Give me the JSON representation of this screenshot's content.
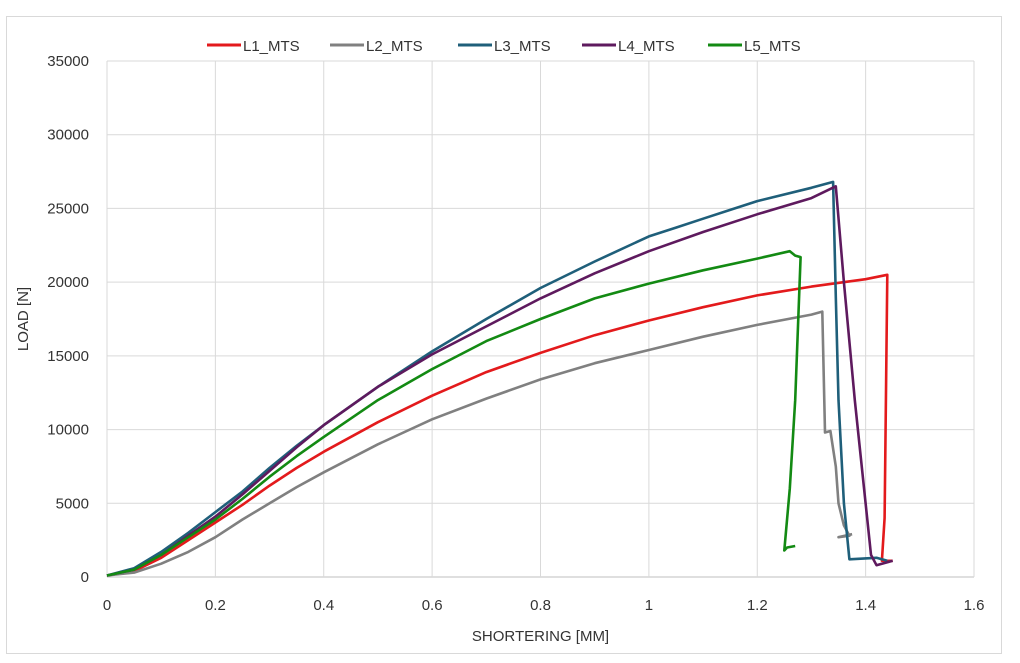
{
  "chart_data": {
    "type": "line",
    "title": "",
    "xlabel": "SHORTERING [MM]",
    "ylabel": "LOAD [N]",
    "xlim": [
      0,
      1.6
    ],
    "ylim": [
      0,
      35000
    ],
    "x_ticks": [
      "0",
      "0.2",
      "0.4",
      "0.6",
      "0.8",
      "1",
      "1.2",
      "1.4",
      "1.6"
    ],
    "y_ticks": [
      "0",
      "5000",
      "10000",
      "15000",
      "20000",
      "25000",
      "30000",
      "35000"
    ],
    "grid": true,
    "legend_position": "top",
    "series": [
      {
        "name": "L1_MTS",
        "color": "#e31a1c",
        "points": [
          [
            0,
            100
          ],
          [
            0.05,
            400
          ],
          [
            0.1,
            1300
          ],
          [
            0.15,
            2500
          ],
          [
            0.2,
            3700
          ],
          [
            0.25,
            4900
          ],
          [
            0.3,
            6200
          ],
          [
            0.35,
            7400
          ],
          [
            0.4,
            8500
          ],
          [
            0.5,
            10500
          ],
          [
            0.6,
            12300
          ],
          [
            0.7,
            13900
          ],
          [
            0.8,
            15200
          ],
          [
            0.9,
            16400
          ],
          [
            1.0,
            17400
          ],
          [
            1.1,
            18300
          ],
          [
            1.2,
            19100
          ],
          [
            1.3,
            19700
          ],
          [
            1.4,
            20200
          ],
          [
            1.44,
            20500
          ],
          [
            1.435,
            4000
          ],
          [
            1.43,
            1100
          ],
          [
            1.45,
            1100
          ]
        ]
      },
      {
        "name": "L2_MTS",
        "color": "#808080",
        "points": [
          [
            0,
            100
          ],
          [
            0.05,
            300
          ],
          [
            0.1,
            900
          ],
          [
            0.15,
            1700
          ],
          [
            0.2,
            2700
          ],
          [
            0.25,
            3900
          ],
          [
            0.3,
            5000
          ],
          [
            0.35,
            6100
          ],
          [
            0.4,
            7100
          ],
          [
            0.5,
            9000
          ],
          [
            0.6,
            10700
          ],
          [
            0.7,
            12100
          ],
          [
            0.8,
            13400
          ],
          [
            0.9,
            14500
          ],
          [
            1.0,
            15400
          ],
          [
            1.1,
            16300
          ],
          [
            1.2,
            17100
          ],
          [
            1.3,
            17800
          ],
          [
            1.32,
            18000
          ],
          [
            1.325,
            9800
          ],
          [
            1.335,
            9900
          ],
          [
            1.345,
            7500
          ],
          [
            1.35,
            5000
          ],
          [
            1.36,
            3500
          ],
          [
            1.37,
            2800
          ],
          [
            1.35,
            2700
          ],
          [
            1.375,
            2900
          ]
        ]
      },
      {
        "name": "L3_MTS",
        "color": "#1f5f7a",
        "points": [
          [
            0,
            100
          ],
          [
            0.05,
            600
          ],
          [
            0.1,
            1700
          ],
          [
            0.15,
            3000
          ],
          [
            0.2,
            4400
          ],
          [
            0.25,
            5800
          ],
          [
            0.3,
            7400
          ],
          [
            0.35,
            8900
          ],
          [
            0.4,
            10300
          ],
          [
            0.5,
            12900
          ],
          [
            0.6,
            15300
          ],
          [
            0.7,
            17500
          ],
          [
            0.8,
            19600
          ],
          [
            0.9,
            21400
          ],
          [
            1.0,
            23100
          ],
          [
            1.05,
            23700
          ],
          [
            1.1,
            24300
          ],
          [
            1.15,
            24900
          ],
          [
            1.2,
            25500
          ],
          [
            1.3,
            26400
          ],
          [
            1.34,
            26800
          ],
          [
            1.345,
            19000
          ],
          [
            1.35,
            12000
          ],
          [
            1.36,
            5000
          ],
          [
            1.37,
            1200
          ],
          [
            1.42,
            1300
          ],
          [
            1.44,
            1100
          ]
        ]
      },
      {
        "name": "L4_MTS",
        "color": "#5e1a5e",
        "points": [
          [
            0,
            100
          ],
          [
            0.05,
            500
          ],
          [
            0.1,
            1500
          ],
          [
            0.15,
            2800
          ],
          [
            0.2,
            4100
          ],
          [
            0.25,
            5600
          ],
          [
            0.3,
            7200
          ],
          [
            0.35,
            8800
          ],
          [
            0.4,
            10300
          ],
          [
            0.5,
            12900
          ],
          [
            0.6,
            15100
          ],
          [
            0.7,
            17000
          ],
          [
            0.8,
            18900
          ],
          [
            0.9,
            20600
          ],
          [
            1.0,
            22100
          ],
          [
            1.1,
            23400
          ],
          [
            1.2,
            24600
          ],
          [
            1.3,
            25700
          ],
          [
            1.345,
            26500
          ],
          [
            1.36,
            20000
          ],
          [
            1.38,
            12000
          ],
          [
            1.4,
            5000
          ],
          [
            1.41,
            1500
          ],
          [
            1.42,
            800
          ],
          [
            1.45,
            1100
          ]
        ]
      },
      {
        "name": "L5_MTS",
        "color": "#138a13",
        "points": [
          [
            0,
            100
          ],
          [
            0.05,
            500
          ],
          [
            0.1,
            1500
          ],
          [
            0.15,
            2700
          ],
          [
            0.2,
            3900
          ],
          [
            0.25,
            5300
          ],
          [
            0.3,
            6800
          ],
          [
            0.35,
            8200
          ],
          [
            0.4,
            9500
          ],
          [
            0.5,
            12000
          ],
          [
            0.6,
            14100
          ],
          [
            0.7,
            16000
          ],
          [
            0.8,
            17500
          ],
          [
            0.9,
            18900
          ],
          [
            1.0,
            19900
          ],
          [
            1.1,
            20800
          ],
          [
            1.2,
            21600
          ],
          [
            1.26,
            22100
          ],
          [
            1.27,
            21800
          ],
          [
            1.28,
            21700
          ],
          [
            1.27,
            12000
          ],
          [
            1.26,
            6000
          ],
          [
            1.25,
            1800
          ],
          [
            1.255,
            2000
          ],
          [
            1.27,
            2100
          ]
        ]
      }
    ]
  }
}
